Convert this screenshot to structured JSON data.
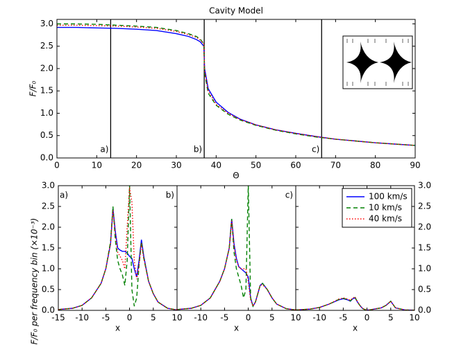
{
  "chart_data": [
    {
      "type": "line",
      "title": "Cavity Model",
      "x_label": "Θ",
      "y_label": "F/F₀",
      "x": [
        0,
        5,
        10,
        15,
        20,
        25,
        30,
        33,
        35,
        36,
        36.9,
        37.1,
        38,
        40,
        43,
        46,
        50,
        55,
        60,
        65,
        70,
        75,
        80,
        85,
        90
      ],
      "series": [
        {
          "name": "100 km/s",
          "color": "#0000ff",
          "linestyle": "solid",
          "values": [
            2.92,
            2.92,
            2.91,
            2.9,
            2.88,
            2.85,
            2.78,
            2.72,
            2.65,
            2.6,
            2.5,
            2.0,
            1.55,
            1.25,
            1.02,
            0.87,
            0.74,
            0.63,
            0.55,
            0.48,
            0.42,
            0.38,
            0.34,
            0.31,
            0.28
          ]
        },
        {
          "name": "10 km/s",
          "color": "#008000",
          "linestyle": "dashed",
          "values": [
            3.0,
            3.0,
            2.99,
            2.97,
            2.95,
            2.92,
            2.85,
            2.78,
            2.72,
            2.66,
            2.55,
            1.9,
            1.45,
            1.18,
            0.98,
            0.85,
            0.73,
            0.62,
            0.54,
            0.47,
            0.42,
            0.38,
            0.34,
            0.31,
            0.28
          ]
        },
        {
          "name": "40 km/s",
          "color": "#ff0000",
          "linestyle": "dotted",
          "values": [
            2.97,
            2.97,
            2.96,
            2.95,
            2.93,
            2.9,
            2.83,
            2.76,
            2.7,
            2.64,
            2.55,
            1.95,
            1.5,
            1.2,
            1.0,
            0.86,
            0.74,
            0.63,
            0.55,
            0.48,
            0.42,
            0.38,
            0.34,
            0.31,
            0.28
          ]
        }
      ],
      "vlines": [
        {
          "x": 13.5,
          "label": "a)"
        },
        {
          "x": 37,
          "label": "b)"
        },
        {
          "x": 66.5,
          "label": "c)"
        }
      ],
      "xlim": [
        0,
        90
      ],
      "xticks": [
        0,
        10,
        20,
        30,
        40,
        50,
        60,
        70,
        80,
        90
      ],
      "ylim": [
        0,
        3.1
      ],
      "yticks": [
        {
          "value": 0,
          "label": "0.0"
        },
        {
          "value": 0.5,
          "label": "0.5"
        },
        {
          "value": 1,
          "label": "1.0"
        },
        {
          "value": 1.5,
          "label": "1.5"
        },
        {
          "value": 2,
          "label": "2.0"
        },
        {
          "value": 2.5,
          "label": "2.5"
        },
        {
          "value": 3,
          "label": "3.0"
        }
      ],
      "yaxis_side": "left"
    },
    {
      "type": "line",
      "x_label": "x",
      "y_label": "F/F₀ per frequency bin (×10⁻³)",
      "panel_labels": [
        {
          "text": "a)",
          "corner": "upper left"
        },
        {
          "text": "b)",
          "corner": "upper right"
        }
      ],
      "x": [
        -15,
        -12,
        -10,
        -8,
        -6,
        -5,
        -4,
        -3.5,
        -3,
        -2.5,
        -2,
        -1.5,
        -1,
        -0.5,
        0,
        0.5,
        1,
        1.5,
        2,
        2.5,
        3,
        4,
        5,
        6,
        8,
        10
      ],
      "series": [
        {
          "name": "100 km/s",
          "color": "#0000ff",
          "linestyle": "solid",
          "values": [
            0.02,
            0.05,
            0.12,
            0.3,
            0.65,
            1.0,
            1.6,
            2.45,
            1.9,
            1.5,
            1.45,
            1.42,
            1.42,
            1.38,
            1.3,
            1.25,
            1.0,
            0.8,
            1.2,
            1.7,
            1.3,
            0.7,
            0.4,
            0.2,
            0.05,
            0.01
          ]
        },
        {
          "name": "10 km/s",
          "color": "#008000",
          "linestyle": "dashed",
          "values": [
            0.02,
            0.05,
            0.12,
            0.3,
            0.65,
            1.0,
            1.65,
            2.5,
            1.7,
            1.2,
            1.0,
            0.85,
            0.6,
            1.2,
            3.0,
            0.5,
            0.1,
            0.3,
            1.1,
            1.65,
            1.25,
            0.7,
            0.4,
            0.2,
            0.05,
            0.01
          ]
        },
        {
          "name": "40 km/s",
          "color": "#ff0000",
          "linestyle": "dotted",
          "values": [
            0.02,
            0.05,
            0.12,
            0.3,
            0.65,
            1.0,
            1.6,
            2.4,
            1.85,
            1.4,
            1.3,
            1.2,
            1.0,
            2.0,
            2.95,
            2.6,
            1.2,
            0.75,
            1.1,
            1.6,
            1.25,
            0.7,
            0.4,
            0.2,
            0.05,
            0.01
          ]
        }
      ],
      "xlim": [
        -15,
        10
      ],
      "xticks": [
        -15,
        -10,
        -5,
        0,
        5,
        10
      ],
      "ylim": [
        0,
        3.0
      ],
      "yticks": [
        {
          "value": 0,
          "label": "0.0"
        },
        {
          "value": 0.5,
          "label": "0.5"
        },
        {
          "value": 1,
          "label": "1.0"
        },
        {
          "value": 1.5,
          "label": "1.5"
        },
        {
          "value": 2,
          "label": "2.0"
        },
        {
          "value": 2.5,
          "label": "2.5"
        },
        {
          "value": 3,
          "label": "3.0"
        }
      ],
      "yaxis_side": "left"
    },
    {
      "type": "line",
      "x_label": "x",
      "panel_labels": [
        {
          "text": "c)",
          "corner": "upper right"
        }
      ],
      "x": [
        -15,
        -12,
        -10,
        -8,
        -6,
        -5,
        -4,
        -3.5,
        -3,
        -2.5,
        -2,
        -1.5,
        -1,
        -0.5,
        0,
        0.5,
        1,
        1.5,
        2,
        2.5,
        3,
        4,
        5,
        6,
        8,
        10
      ],
      "series": [
        {
          "name": "100 km/s",
          "color": "#0000ff",
          "linestyle": "solid",
          "values": [
            0.02,
            0.05,
            0.12,
            0.3,
            0.7,
            1.0,
            1.5,
            2.2,
            1.6,
            1.25,
            1.05,
            1.0,
            0.95,
            0.9,
            0.8,
            0.3,
            0.1,
            0.2,
            0.4,
            0.6,
            0.65,
            0.5,
            0.3,
            0.15,
            0.04,
            0.01
          ]
        },
        {
          "name": "10 km/s",
          "color": "#008000",
          "linestyle": "dashed",
          "values": [
            0.02,
            0.05,
            0.12,
            0.3,
            0.7,
            1.0,
            1.5,
            2.2,
            1.4,
            1.0,
            0.8,
            0.6,
            0.3,
            0.5,
            3.0,
            0.3,
            0.1,
            0.2,
            0.4,
            0.6,
            0.65,
            0.5,
            0.3,
            0.15,
            0.04,
            0.01
          ]
        },
        {
          "name": "40 km/s",
          "color": "#ff0000",
          "linestyle": "dotted",
          "values": [
            0.02,
            0.05,
            0.12,
            0.3,
            0.7,
            1.0,
            1.5,
            2.15,
            1.55,
            1.2,
            1.05,
            1.0,
            1.0,
            1.0,
            0.7,
            0.25,
            0.1,
            0.2,
            0.4,
            0.6,
            0.62,
            0.5,
            0.3,
            0.15,
            0.04,
            0.01
          ]
        }
      ],
      "xlim": [
        -15,
        10
      ],
      "xticks": [
        -10,
        -5,
        0,
        5,
        10
      ],
      "ylim": [
        0,
        3.0
      ],
      "yaxis_side": "none"
    },
    {
      "type": "line",
      "x_label": "x",
      "legend": "upper right",
      "x": [
        -15,
        -12,
        -10,
        -8,
        -6,
        -5,
        -4,
        -3.5,
        -3,
        -2.5,
        -2,
        -1.5,
        -1,
        -0.5,
        0,
        0.5,
        1,
        1.5,
        2,
        2.5,
        3,
        4,
        5,
        6,
        8,
        10
      ],
      "series": [
        {
          "name": "100 km/s",
          "color": "#0000ff",
          "linestyle": "solid",
          "values": [
            0.01,
            0.03,
            0.07,
            0.15,
            0.25,
            0.28,
            0.25,
            0.22,
            0.28,
            0.3,
            0.2,
            0.12,
            0.05,
            0.02,
            0.01,
            0.01,
            0.02,
            0.03,
            0.04,
            0.05,
            0.06,
            0.12,
            0.22,
            0.06,
            0.01,
            0.005
          ]
        },
        {
          "name": "10 km/s",
          "color": "#008000",
          "linestyle": "dashed",
          "values": [
            0.01,
            0.03,
            0.07,
            0.15,
            0.26,
            0.29,
            0.26,
            0.23,
            0.29,
            0.31,
            0.2,
            0.12,
            0.05,
            0.02,
            0.01,
            0.01,
            0.02,
            0.03,
            0.04,
            0.05,
            0.06,
            0.12,
            0.22,
            0.06,
            0.01,
            0.005
          ]
        },
        {
          "name": "40 km/s",
          "color": "#ff0000",
          "linestyle": "dotted",
          "values": [
            0.01,
            0.03,
            0.07,
            0.15,
            0.27,
            0.3,
            0.27,
            0.24,
            0.3,
            0.32,
            0.21,
            0.12,
            0.05,
            0.02,
            0.01,
            0.01,
            0.02,
            0.03,
            0.04,
            0.05,
            0.06,
            0.12,
            0.22,
            0.06,
            0.01,
            0.005
          ]
        }
      ],
      "xlim": [
        -15,
        10
      ],
      "xticks": [
        -10,
        -5,
        0,
        5,
        10
      ],
      "ylim": [
        0,
        3.0
      ],
      "yticks": [
        {
          "value": 0,
          "label": "0.0"
        },
        {
          "value": 0.5,
          "label": "0.5"
        },
        {
          "value": 1,
          "label": "1.0"
        },
        {
          "value": 1.5,
          "label": "1.5"
        },
        {
          "value": 2,
          "label": "2.0"
        },
        {
          "value": 2.5,
          "label": "2.5"
        },
        {
          "value": 3,
          "label": "3.0"
        }
      ],
      "yaxis_side": "right"
    }
  ]
}
